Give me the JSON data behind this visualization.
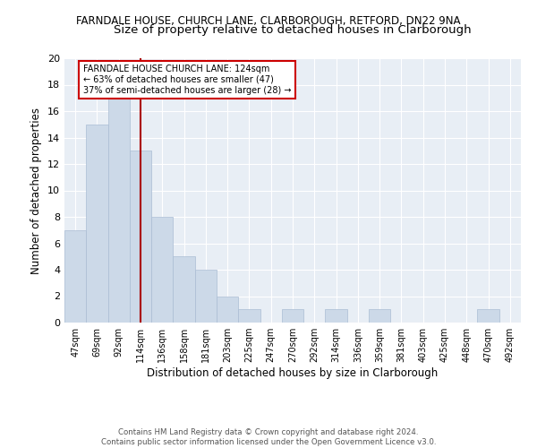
{
  "title": "FARNDALE HOUSE, CHURCH LANE, CLARBOROUGH, RETFORD, DN22 9NA",
  "subtitle": "Size of property relative to detached houses in Clarborough",
  "xlabel": "Distribution of detached houses by size in Clarborough",
  "ylabel": "Number of detached properties",
  "categories": [
    "47sqm",
    "69sqm",
    "92sqm",
    "114sqm",
    "136sqm",
    "158sqm",
    "181sqm",
    "203sqm",
    "225sqm",
    "247sqm",
    "270sqm",
    "292sqm",
    "314sqm",
    "336sqm",
    "359sqm",
    "381sqm",
    "403sqm",
    "425sqm",
    "448sqm",
    "470sqm",
    "492sqm"
  ],
  "values": [
    7,
    15,
    17,
    13,
    8,
    5,
    4,
    2,
    1,
    0,
    1,
    0,
    1,
    0,
    1,
    0,
    0,
    0,
    0,
    1,
    0
  ],
  "bar_color": "#ccd9e8",
  "bar_edge_color": "#aabdd4",
  "vline_x_index": 3,
  "vline_color": "#aa0000",
  "annotation_text": "FARNDALE HOUSE CHURCH LANE: 124sqm\n← 63% of detached houses are smaller (47)\n37% of semi-detached houses are larger (28) →",
  "annotation_box_color": "#ffffff",
  "annotation_box_edge_color": "#cc0000",
  "ylim": [
    0,
    20
  ],
  "yticks": [
    0,
    2,
    4,
    6,
    8,
    10,
    12,
    14,
    16,
    18,
    20
  ],
  "footer": "Contains HM Land Registry data © Crown copyright and database right 2024.\nContains public sector information licensed under the Open Government Licence v3.0.",
  "background_color": "#e8eef5",
  "title_fontsize": 8.5,
  "subtitle_fontsize": 9.5,
  "ylabel_fontsize": 8.5,
  "xlabel_fontsize": 8.5
}
